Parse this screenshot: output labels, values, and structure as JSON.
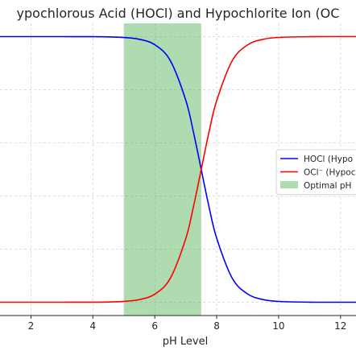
{
  "chart_data": {
    "type": "line",
    "title": "ypochlorous Acid (HOCl) and Hypochlorite Ion (OC",
    "xlabel": "pH Level",
    "ylabel": "",
    "xlim": [
      1.0,
      12.5
    ],
    "ylim": [
      -0.05,
      1.05
    ],
    "xticks": [
      {
        "value": 2,
        "label": "2"
      },
      {
        "value": 4,
        "label": "4"
      },
      {
        "value": 6,
        "label": "6"
      },
      {
        "value": 8,
        "label": "8"
      },
      {
        "value": 10,
        "label": "10"
      },
      {
        "value": 12,
        "label": "12"
      }
    ],
    "grid": true,
    "grid_yticks": [
      0,
      0.2,
      0.4,
      0.6,
      0.8,
      1.0
    ],
    "shaded_band": {
      "x0": 5.0,
      "x1": 7.5,
      "color": "#4caf50",
      "opacity": 0.45
    },
    "series": [
      {
        "name": "HOCl (Hypo",
        "color": "#0000ff",
        "x": [
          1,
          2,
          3,
          4,
          4.5,
          5,
          5.5,
          6,
          6.5,
          7,
          7.25,
          7.5,
          7.75,
          8,
          8.5,
          9,
          9.5,
          10,
          11,
          12,
          12.5
        ],
        "y": [
          1.0,
          1.0,
          1.0,
          0.9997,
          0.999,
          0.9968,
          0.99,
          0.9695,
          0.91,
          0.761,
          0.64,
          0.5,
          0.36,
          0.241,
          0.091,
          0.031,
          0.01,
          0.003,
          0.0003,
          0.0,
          0.0
        ]
      },
      {
        "name": "OCl⁻ (Hypoc",
        "color": "#ff0000",
        "x": [
          1,
          2,
          3,
          4,
          4.5,
          5,
          5.5,
          6,
          6.5,
          7,
          7.25,
          7.5,
          7.75,
          8,
          8.5,
          9,
          9.5,
          10,
          11,
          12,
          12.5
        ],
        "y": [
          0.0,
          0.0,
          0.0,
          0.0003,
          0.001,
          0.0032,
          0.01,
          0.0305,
          0.09,
          0.239,
          0.36,
          0.5,
          0.64,
          0.759,
          0.909,
          0.969,
          0.99,
          0.997,
          0.9997,
          1.0,
          1.0
        ]
      }
    ],
    "legend": {
      "placement": "right",
      "entries": [
        {
          "type": "line",
          "label": "HOCl (Hypo",
          "color": "#0000ff"
        },
        {
          "type": "line",
          "label": "OCl⁻ (Hypoc",
          "color": "#ff0000"
        },
        {
          "type": "patch",
          "label": "Optimal pH",
          "color": "#4caf50"
        }
      ]
    }
  }
}
